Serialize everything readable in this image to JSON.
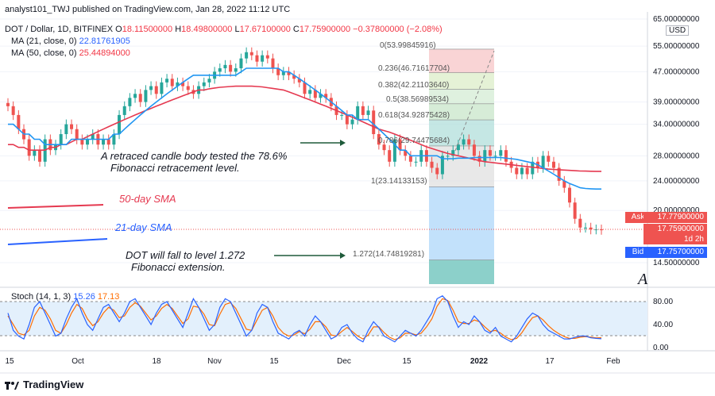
{
  "header": {
    "published": "analyst101_TWJ published on TradingView.com, Jan 28, 2022 11:12 UTC",
    "symbol": "DOT / Dollar, 1D, BITFINEX",
    "o_label": "O",
    "o_value": "18.11500000",
    "h_label": "H",
    "h_value": "18.49800000",
    "l_label": "L",
    "l_value": "17.67100000",
    "c_label": "C",
    "c_value": "17.75900000",
    "change": "−0.37800000 (−2.08%)",
    "ma21_label": "MA (21, close, 0)",
    "ma21_value": "22.81761905",
    "ma50_label": "MA (50, close, 0)",
    "ma50_value": "25.44894000"
  },
  "annotations": {
    "retrace": [
      "A retraced candle body tested the 78.6%",
      "Fibonacci retracement level."
    ],
    "sma50": "50-day SMA",
    "sma21": "21-day SMA",
    "extension": [
      "DOT will fall to level 1.272",
      "Fibonacci extension."
    ]
  },
  "price_axis": {
    "currency": "USD",
    "ticks": [
      "65.00000000",
      "55.00000000",
      "47.00000000",
      "39.00000000",
      "34.00000000",
      "28.00000000",
      "24.00000000",
      "20.00000000",
      "14.50000000"
    ],
    "ask_label": "Ask",
    "ask_value": "17.77900000",
    "last_value": "17.75900000",
    "countdown": "1d 2h",
    "bid_label": "Bid",
    "bid_value": "17.75700000"
  },
  "fib_levels": [
    {
      "label": "0(53.99845916)"
    },
    {
      "label": "0.236(46.71617704)"
    },
    {
      "label": "0.382(42.21103640)"
    },
    {
      "label": "0.5(38.56989534)"
    },
    {
      "label": "0.618(34.92875428)"
    },
    {
      "label": "0.786(29.74475684)"
    },
    {
      "label": "1(23.14133153)"
    },
    {
      "label": "1.272(14.74819281)"
    }
  ],
  "stoch": {
    "label": "Stoch (14, 1, 3)",
    "k_value": "15.26",
    "d_value": "17.13",
    "ticks": [
      "80.00",
      "40.00",
      "0.00"
    ]
  },
  "time_axis": [
    "15",
    "Oct",
    "18",
    "Nov",
    "15",
    "Dec",
    "15",
    "2022",
    "17",
    "Feb"
  ],
  "footer": {
    "brand": "TradingView"
  },
  "colors": {
    "up": "#26a69a",
    "down": "#ef5350",
    "ma21": "#2196f3",
    "ma50": "#e53950",
    "k": "#2962ff",
    "d": "#ff6d00"
  },
  "chart_data": {
    "type": "candlestick",
    "symbol": "DOT / Dollar",
    "interval": "1D",
    "price_scale": "log",
    "ylim": [
      12.5,
      65
    ],
    "approx_close": [
      38,
      36,
      33,
      31,
      28,
      29,
      27,
      31,
      29,
      30,
      32,
      34,
      33,
      31,
      30,
      31,
      32,
      30,
      31,
      30,
      32,
      36,
      38,
      40,
      41,
      39,
      42,
      43,
      41,
      44,
      45,
      43,
      44,
      43,
      42,
      41,
      43,
      44,
      45,
      47,
      48,
      49,
      47,
      48,
      51,
      53,
      52,
      50,
      52,
      51,
      48,
      46,
      47,
      46,
      45,
      44,
      41,
      42,
      40,
      41,
      40,
      38,
      36,
      36,
      34,
      35,
      38,
      36,
      37,
      32,
      30,
      29,
      27,
      31,
      29,
      28,
      27,
      27,
      29,
      27,
      26,
      25,
      28,
      28,
      29,
      30,
      31,
      30,
      28,
      27,
      29,
      28,
      28,
      29,
      27,
      26,
      25,
      26,
      25,
      27,
      26,
      28,
      27,
      26,
      24,
      23,
      21,
      19,
      18,
      18,
      17.8,
      17.8,
      17.76
    ],
    "approx_ma21": [
      34,
      34,
      33,
      32,
      32,
      31,
      31,
      30,
      30,
      30,
      30,
      30,
      31,
      31,
      31,
      31,
      31,
      31,
      31,
      31,
      32,
      32,
      33,
      34,
      35,
      36,
      37,
      38,
      39,
      40,
      41,
      42,
      43,
      44,
      45,
      46,
      46,
      46,
      46,
      46,
      46,
      46,
      46,
      46,
      47,
      48,
      48,
      48,
      48,
      48,
      48,
      48,
      47,
      47,
      46,
      45,
      44,
      43,
      42,
      41,
      40,
      39,
      38,
      37,
      36,
      36,
      35,
      35,
      35,
      34,
      33,
      32,
      31,
      30,
      29,
      29,
      28,
      28,
      28,
      28,
      28,
      28,
      27.5,
      27.5,
      27.5,
      27.6,
      27.6,
      27.6,
      27.7,
      27.7,
      27.7,
      27.7,
      27.7,
      27.7,
      27.6,
      27.5,
      27.4,
      27.2,
      27,
      26.8,
      26.5,
      26,
      25.5,
      25,
      24.5,
      24,
      23.6,
      23.3,
      23,
      22.9,
      22.85,
      22.82,
      22.82
    ],
    "approx_ma50": [
      30,
      30,
      29.5,
      29.5,
      29,
      29,
      29,
      29,
      29.5,
      29.5,
      30,
      30,
      30.5,
      31,
      31,
      31.5,
      32,
      32.5,
      33,
      33.5,
      34,
      34.5,
      35,
      35.5,
      36,
      36.5,
      37,
      37.5,
      38,
      38.5,
      39,
      39.5,
      40,
      40.5,
      41,
      41.5,
      42,
      42,
      42.3,
      42.5,
      42.7,
      42.8,
      42.9,
      43,
      43,
      43,
      43,
      42.9,
      42.8,
      42.6,
      42.4,
      42.2,
      42,
      41.5,
      41,
      40.5,
      40,
      39.5,
      39,
      38.5,
      38,
      37.5,
      37,
      36.5,
      36,
      35.5,
      35,
      34.5,
      34,
      33.5,
      33,
      32.7,
      32.4,
      32,
      31.6,
      31.2,
      30.8,
      30.4,
      30,
      29.6,
      29.3,
      29,
      28.7,
      28.4,
      28.2,
      28,
      27.8,
      27.6,
      27.4,
      27.2,
      27,
      26.9,
      26.8,
      26.7,
      26.6,
      26.5,
      26.4,
      26.3,
      26.2,
      26.1,
      26,
      25.9,
      25.8,
      25.75,
      25.7,
      25.65,
      25.6,
      25.55,
      25.5,
      25.48,
      25.46,
      25.45,
      25.45
    ],
    "stoch_k": [
      60,
      30,
      20,
      15,
      40,
      70,
      80,
      60,
      40,
      20,
      25,
      50,
      70,
      85,
      60,
      40,
      30,
      50,
      70,
      75,
      60,
      45,
      60,
      80,
      85,
      70,
      55,
      40,
      60,
      75,
      80,
      65,
      50,
      35,
      60,
      85,
      70,
      50,
      30,
      40,
      70,
      85,
      80,
      60,
      40,
      20,
      30,
      60,
      75,
      70,
      45,
      25,
      20,
      15,
      25,
      30,
      20,
      40,
      55,
      45,
      30,
      15,
      20,
      35,
      40,
      25,
      15,
      10,
      30,
      45,
      35,
      20,
      15,
      10,
      20,
      30,
      25,
      20,
      30,
      45,
      60,
      85,
      90,
      80,
      55,
      35,
      45,
      40,
      55,
      45,
      30,
      25,
      35,
      20,
      15,
      10,
      20,
      35,
      50,
      60,
      55,
      40,
      30,
      25,
      20,
      15,
      15,
      18,
      20,
      20,
      17,
      16,
      15.26
    ],
    "stoch_d": [
      55,
      40,
      25,
      22,
      30,
      55,
      70,
      65,
      50,
      30,
      25,
      40,
      60,
      75,
      68,
      50,
      38,
      45,
      60,
      70,
      65,
      52,
      55,
      70,
      78,
      72,
      60,
      48,
      55,
      68,
      75,
      68,
      55,
      42,
      50,
      72,
      70,
      58,
      40,
      38,
      58,
      75,
      78,
      68,
      50,
      32,
      30,
      48,
      65,
      70,
      55,
      35,
      25,
      20,
      22,
      28,
      24,
      32,
      45,
      45,
      36,
      22,
      20,
      28,
      35,
      28,
      20,
      15,
      22,
      36,
      36,
      26,
      18,
      14,
      17,
      25,
      25,
      22,
      25,
      36,
      50,
      72,
      85,
      82,
      65,
      45,
      42,
      42,
      48,
      45,
      36,
      28,
      30,
      25,
      18,
      14,
      16,
      26,
      40,
      52,
      55,
      48,
      38,
      30,
      24,
      19,
      16,
      16,
      18,
      19,
      18,
      17,
      17.13
    ]
  }
}
